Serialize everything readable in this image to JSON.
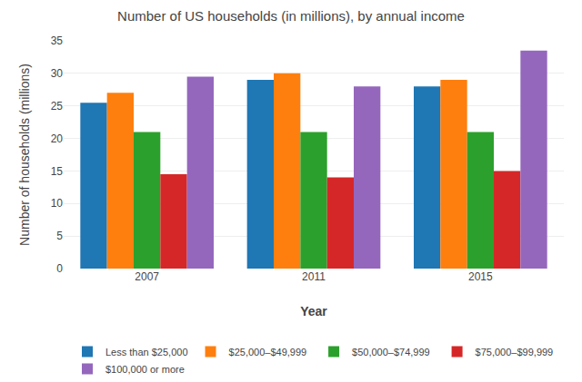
{
  "chart_data": {
    "type": "bar",
    "title": "Number of US households (in millions), by annual income",
    "xlabel": "Year",
    "ylabel": "Number of households (millions)",
    "categories": [
      "2007",
      "2011",
      "2015"
    ],
    "series": [
      {
        "name": "Less than $25,000",
        "values": [
          25.5,
          29.0,
          28.0
        ]
      },
      {
        "name": "$25,000–$49,999",
        "values": [
          27.0,
          30.0,
          29.0
        ]
      },
      {
        "name": "$50,000–$74,999",
        "values": [
          21.0,
          21.0,
          21.0
        ]
      },
      {
        "name": "$75,000–$99,999",
        "values": [
          14.5,
          14.0,
          15.0
        ]
      },
      {
        "name": "$100,000 or more",
        "values": [
          29.5,
          28.0,
          33.5
        ]
      }
    ],
    "ylim": [
      0,
      35
    ],
    "yticks": [
      0,
      5,
      10,
      15,
      20,
      25,
      30,
      35
    ],
    "grid": true,
    "legend": "bottom"
  }
}
